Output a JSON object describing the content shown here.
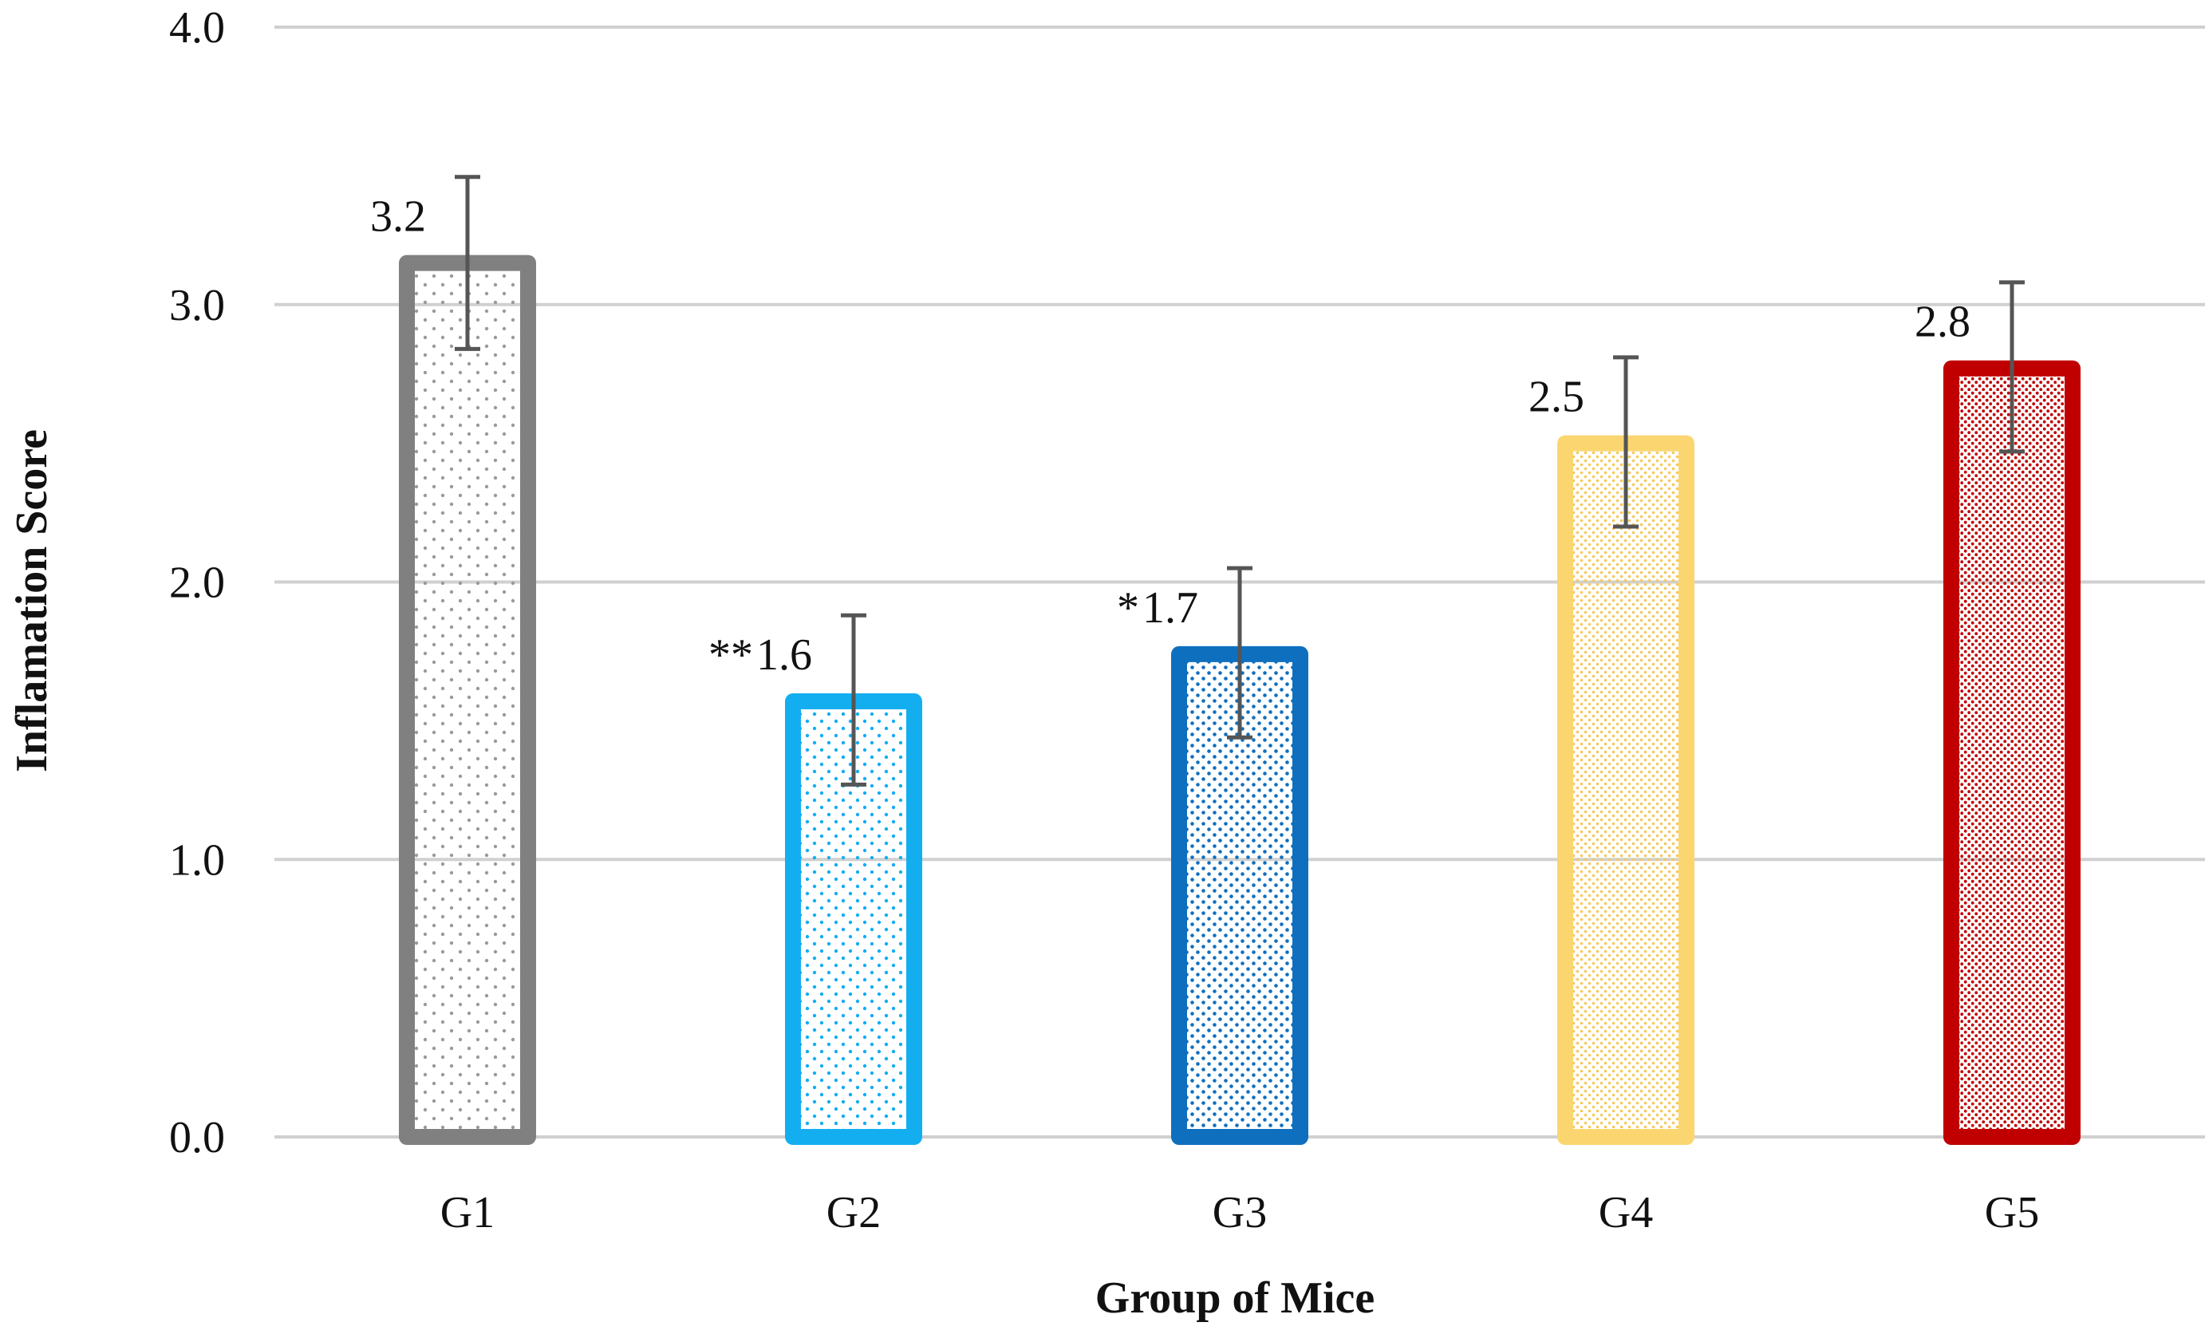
{
  "chart_data": {
    "type": "bar",
    "title": "",
    "xlabel": "Group of Mice",
    "ylabel": "Inflamation Score",
    "ylim": [
      0,
      4
    ],
    "yticks": [
      "0.0",
      "1.0",
      "2.0",
      "3.0",
      "4.0"
    ],
    "grid": true,
    "categories": [
      "G1",
      "G2",
      "G3",
      "G4",
      "G5"
    ],
    "values": [
      3.15,
      1.57,
      1.74,
      2.5,
      2.77
    ],
    "value_labels": [
      "3.2",
      "1.6",
      "1.7",
      "2.5",
      "2.8"
    ],
    "significance": [
      "",
      "**",
      "*",
      "",
      ""
    ],
    "error_bars": [
      {
        "low": 2.84,
        "high": 3.46
      },
      {
        "low": 1.27,
        "high": 1.88
      },
      {
        "low": 1.44,
        "high": 2.05
      },
      {
        "low": 2.2,
        "high": 2.81
      },
      {
        "low": 2.47,
        "high": 3.08
      }
    ],
    "colors": [
      "#808080",
      "#13aef0",
      "#0e6fbf",
      "#fbd670",
      "#c00000"
    ]
  }
}
